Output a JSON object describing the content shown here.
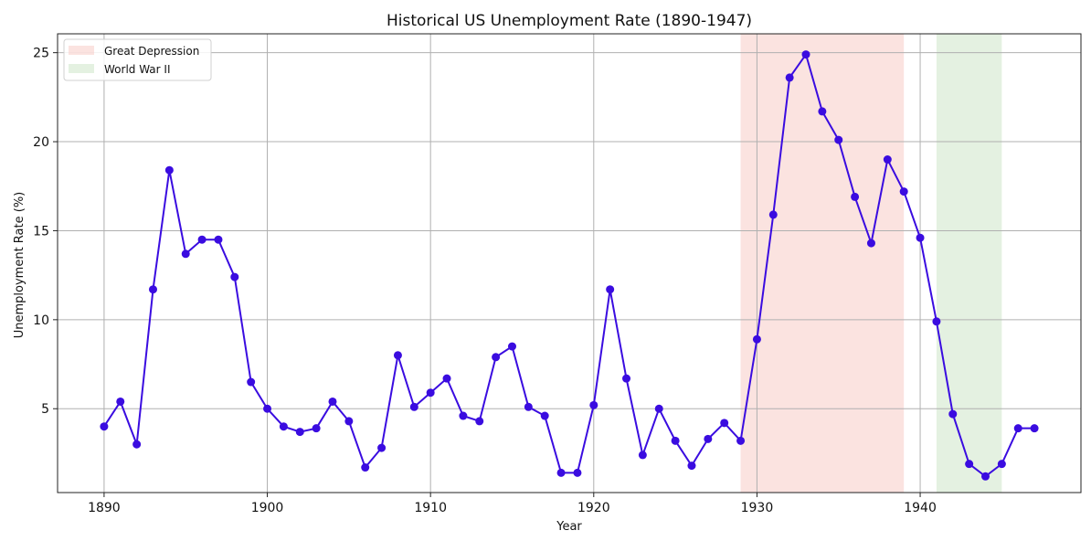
{
  "chart_data": {
    "type": "line",
    "title": "Historical US Unemployment Rate (1890-1947)",
    "xlabel": "Year",
    "ylabel": "Unemployment Rate (%)",
    "xlim": [
      1887.15,
      1949.85
    ],
    "ylim": [
      0.29,
      26.06
    ],
    "xticks": [
      1890,
      1900,
      1910,
      1920,
      1930,
      1940
    ],
    "yticks": [
      5,
      10,
      15,
      20,
      25
    ],
    "grid": true,
    "legend_position": "top-left",
    "line_color": "#3a0ce0",
    "x": [
      1890,
      1891,
      1892,
      1893,
      1894,
      1895,
      1896,
      1897,
      1898,
      1899,
      1900,
      1901,
      1902,
      1903,
      1904,
      1905,
      1906,
      1907,
      1908,
      1909,
      1910,
      1911,
      1912,
      1913,
      1914,
      1915,
      1916,
      1917,
      1918,
      1919,
      1920,
      1921,
      1922,
      1923,
      1924,
      1925,
      1926,
      1927,
      1928,
      1929,
      1930,
      1931,
      1932,
      1933,
      1934,
      1935,
      1936,
      1937,
      1938,
      1939,
      1940,
      1941,
      1942,
      1943,
      1944,
      1945,
      1946,
      1947
    ],
    "values": [
      4.0,
      5.4,
      3.0,
      11.7,
      18.4,
      13.7,
      14.5,
      14.5,
      12.4,
      6.5,
      5.0,
      4.0,
      3.7,
      3.9,
      5.4,
      4.3,
      1.7,
      2.8,
      8.0,
      5.1,
      5.9,
      6.7,
      4.6,
      4.3,
      7.9,
      8.5,
      5.1,
      4.6,
      1.4,
      1.4,
      5.2,
      11.7,
      6.7,
      2.4,
      5.0,
      3.2,
      1.8,
      3.3,
      4.2,
      3.2,
      8.9,
      15.9,
      23.6,
      24.9,
      21.7,
      20.1,
      16.9,
      14.3,
      19.0,
      17.2,
      14.6,
      9.9,
      4.7,
      1.9,
      1.2,
      1.9,
      3.9,
      3.9
    ],
    "shaded_regions": [
      {
        "label": "Great Depression",
        "start": 1929,
        "end": 1939,
        "color": "#f8d0cc"
      },
      {
        "label": "World War II",
        "start": 1941,
        "end": 1945,
        "color": "#d2e8cd"
      }
    ]
  }
}
